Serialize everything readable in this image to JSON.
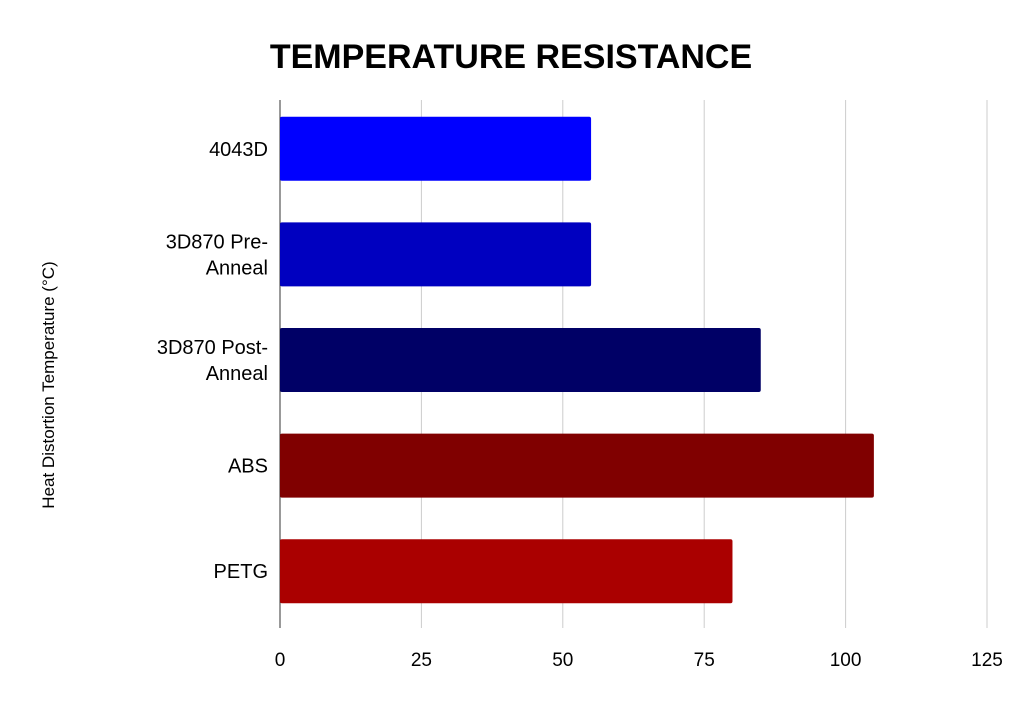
{
  "chart_data": {
    "type": "bar",
    "orientation": "horizontal",
    "title": "TEMPERATURE RESISTANCE",
    "xlabel": "",
    "ylabel": "Heat Distortion Temperature (°C)",
    "categories": [
      [
        "4043D"
      ],
      [
        "3D870 Pre-",
        "Anneal"
      ],
      [
        "3D870 Post-",
        "Anneal"
      ],
      [
        "ABS"
      ],
      [
        "PETG"
      ]
    ],
    "values": [
      55,
      55,
      85,
      105,
      80
    ],
    "colors": [
      "#0000ff",
      "#0000c0",
      "#000066",
      "#800000",
      "#aa0000"
    ],
    "xlim": [
      0,
      125
    ],
    "xticks": [
      0,
      25,
      50,
      75,
      100,
      125
    ],
    "grid": true,
    "legend": "none"
  }
}
